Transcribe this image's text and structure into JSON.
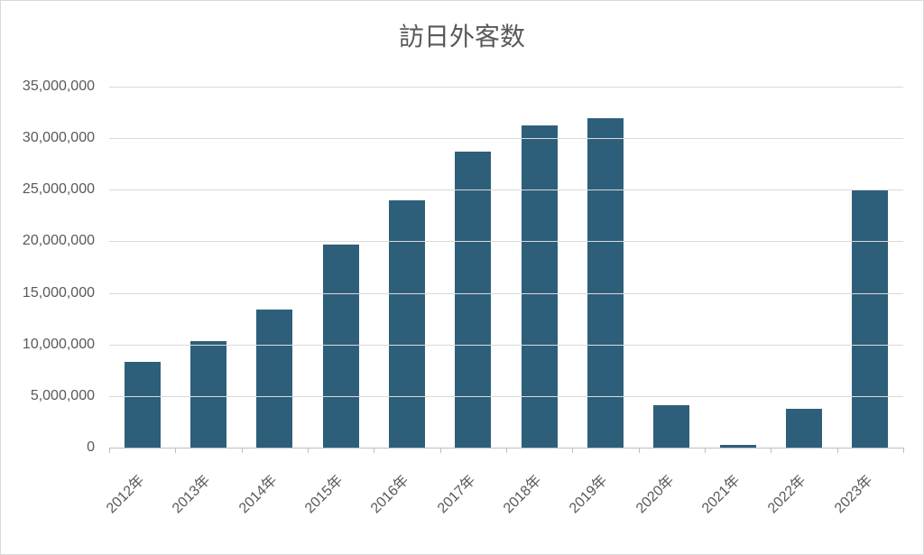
{
  "chart": {
    "type": "bar",
    "title": "訪日外客数",
    "title_fontsize": 28,
    "title_color": "#595959",
    "background_color": "#ffffff",
    "border_color": "#d9d9d9",
    "grid_color": "#d9d9d9",
    "axis_color": "#bfbfbf",
    "label_color": "#595959",
    "label_fontsize": 16,
    "bar_color": "#2e5f7a",
    "categories": [
      "2012年",
      "2013年",
      "2014年",
      "2015年",
      "2016年",
      "2017年",
      "2018年",
      "2019年",
      "2020年",
      "2021年",
      "2022年",
      "2023年"
    ],
    "values": [
      8300000,
      10300000,
      13400000,
      19700000,
      24000000,
      28700000,
      31200000,
      31900000,
      4100000,
      250000,
      3800000,
      25000000
    ],
    "ylim": [
      0,
      35000000
    ],
    "ytick_step": 5000000,
    "ytick_labels": [
      "0",
      "5,000,000",
      "10,000,000",
      "15,000,000",
      "20,000,000",
      "25,000,000",
      "30,000,000",
      "35,000,000"
    ],
    "bar_width_ratio": 0.55,
    "x_label_rotation": -45
  }
}
